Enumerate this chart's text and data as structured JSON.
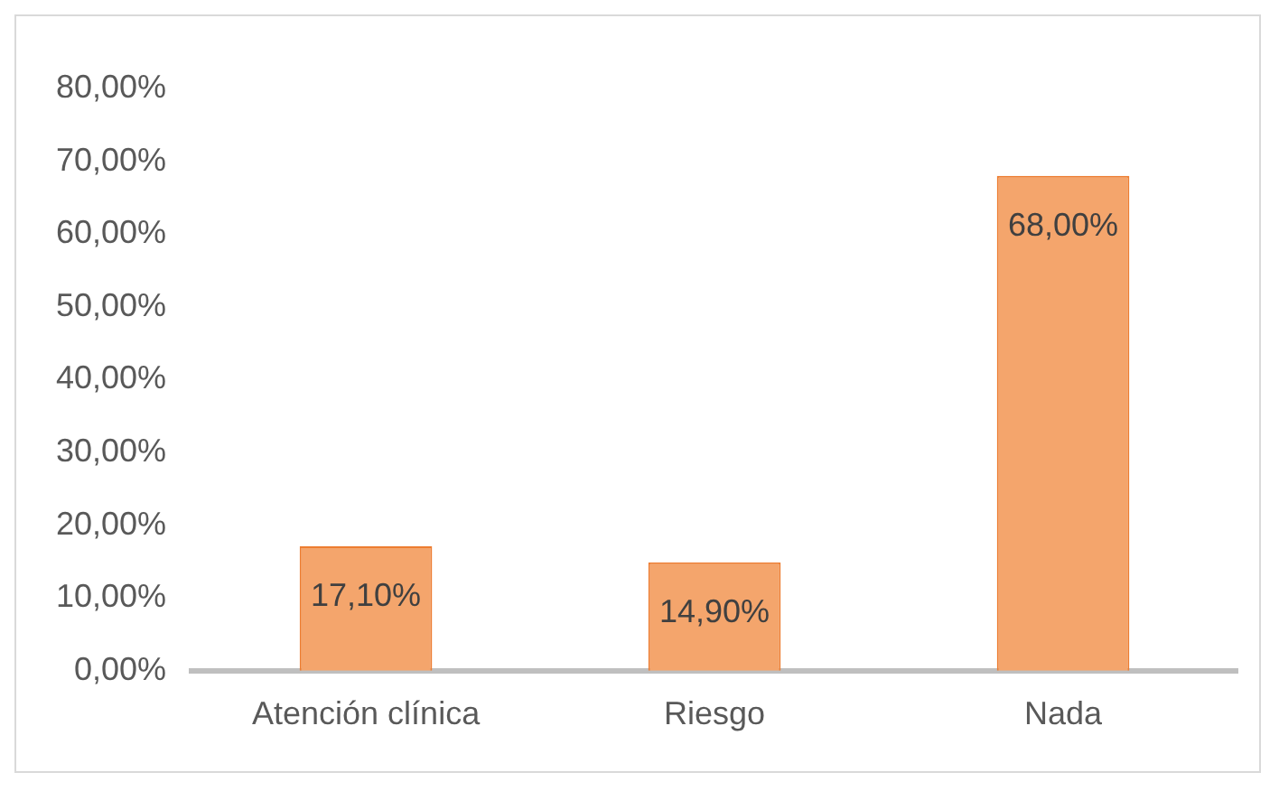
{
  "chart_data": {
    "type": "bar",
    "categories": [
      "Atención clínica",
      "Riesgo",
      "Nada"
    ],
    "values": [
      17.1,
      14.9,
      68
    ],
    "color": "#f4a56c",
    "value_labels": [
      "17,10%",
      "14,90%",
      "68,00%"
    ],
    "ylim": [
      0,
      80
    ],
    "yticks": [
      {
        "value": 0,
        "label": "0,00%"
      },
      {
        "value": 10,
        "label": "10,00%"
      },
      {
        "value": 20,
        "label": "20,00%"
      },
      {
        "value": 30,
        "label": "30,00%"
      },
      {
        "value": 40,
        "label": "40,00%"
      },
      {
        "value": 50,
        "label": "50,00%"
      },
      {
        "value": 60,
        "label": "60,00%"
      },
      {
        "value": 70,
        "label": "70,00%"
      },
      {
        "value": 80,
        "label": "80,00%"
      }
    ],
    "grid": false,
    "legend": false
  }
}
